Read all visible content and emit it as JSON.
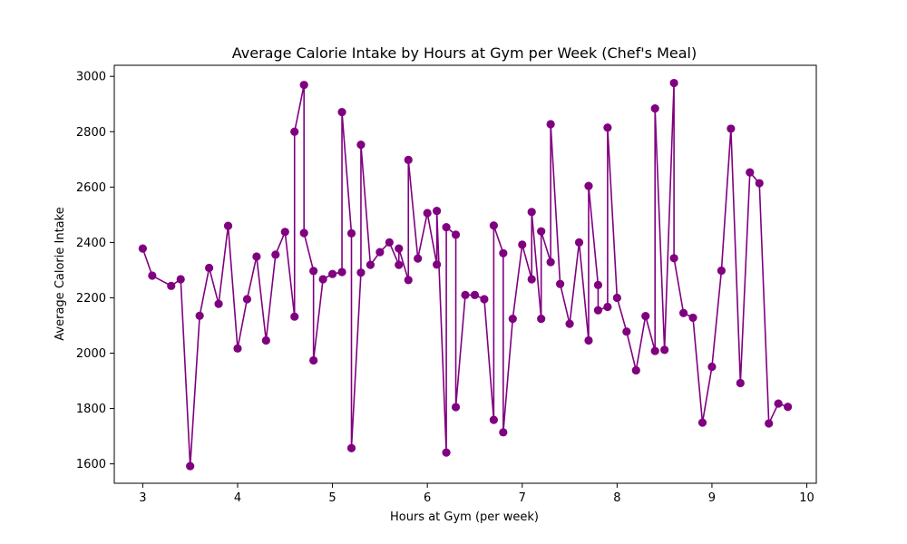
{
  "chart_data": {
    "type": "line",
    "title": "Average Calorie Intake by Hours at Gym per Week (Chef's Meal)",
    "xlabel": "Hours at Gym (per week)",
    "ylabel": "Average Calorie Intake",
    "xlim": [
      2.7,
      10.1
    ],
    "ylim": [
      1530,
      3040
    ],
    "xticks": [
      3,
      4,
      5,
      6,
      7,
      8,
      9,
      10
    ],
    "yticks": [
      1600,
      1800,
      2000,
      2200,
      2400,
      2600,
      2800,
      3000
    ],
    "grid": false,
    "color": "#800080",
    "series": [
      {
        "marker": "circle",
        "points": [
          [
            3.0,
            2378
          ],
          [
            3.1,
            2280
          ],
          [
            3.3,
            2243
          ],
          [
            3.4,
            2267
          ],
          [
            3.5,
            1592
          ],
          [
            3.6,
            2135
          ],
          [
            3.7,
            2308
          ],
          [
            3.8,
            2178
          ],
          [
            3.9,
            2460
          ],
          [
            4.0,
            2017
          ],
          [
            4.1,
            2195
          ],
          [
            4.2,
            2349
          ],
          [
            4.3,
            2046
          ],
          [
            4.4,
            2356
          ],
          [
            4.5,
            2438
          ],
          [
            4.6,
            2132
          ],
          [
            4.6,
            2800
          ],
          [
            4.7,
            2969
          ],
          [
            4.7,
            2434
          ],
          [
            4.8,
            2297
          ],
          [
            4.8,
            1974
          ],
          [
            4.9,
            2267
          ],
          [
            5.0,
            2286
          ],
          [
            5.1,
            2293
          ],
          [
            5.1,
            2871
          ],
          [
            5.2,
            2433
          ],
          [
            5.2,
            1657
          ],
          [
            5.3,
            2291
          ],
          [
            5.3,
            2753
          ],
          [
            5.4,
            2319
          ],
          [
            5.5,
            2365
          ],
          [
            5.6,
            2400
          ],
          [
            5.7,
            2319
          ],
          [
            5.7,
            2378
          ],
          [
            5.8,
            2264
          ],
          [
            5.8,
            2698
          ],
          [
            5.9,
            2342
          ],
          [
            6.0,
            2506
          ],
          [
            6.1,
            2320
          ],
          [
            6.1,
            2514
          ],
          [
            6.2,
            1641
          ],
          [
            6.2,
            2455
          ],
          [
            6.3,
            2428
          ],
          [
            6.3,
            1805
          ],
          [
            6.4,
            2210
          ],
          [
            6.5,
            2210
          ],
          [
            6.6,
            2195
          ],
          [
            6.7,
            1759
          ],
          [
            6.7,
            2461
          ],
          [
            6.8,
            2361
          ],
          [
            6.8,
            1714
          ],
          [
            6.9,
            2124
          ],
          [
            7.0,
            2392
          ],
          [
            7.1,
            2267
          ],
          [
            7.1,
            2510
          ],
          [
            7.2,
            2124
          ],
          [
            7.2,
            2440
          ],
          [
            7.3,
            2329
          ],
          [
            7.3,
            2827
          ],
          [
            7.4,
            2250
          ],
          [
            7.5,
            2106
          ],
          [
            7.6,
            2400
          ],
          [
            7.7,
            2046
          ],
          [
            7.7,
            2604
          ],
          [
            7.8,
            2246
          ],
          [
            7.8,
            2155
          ],
          [
            7.9,
            2167
          ],
          [
            7.9,
            2815
          ],
          [
            8.0,
            2200
          ],
          [
            8.1,
            2078
          ],
          [
            8.2,
            1938
          ],
          [
            8.3,
            2134
          ],
          [
            8.4,
            2008
          ],
          [
            8.4,
            2884
          ],
          [
            8.5,
            2012
          ],
          [
            8.6,
            2976
          ],
          [
            8.6,
            2343
          ],
          [
            8.7,
            2145
          ],
          [
            8.8,
            2128
          ],
          [
            8.9,
            1749
          ],
          [
            9.0,
            1951
          ],
          [
            9.1,
            2298
          ],
          [
            9.2,
            2811
          ],
          [
            9.3,
            1892
          ],
          [
            9.4,
            2653
          ],
          [
            9.5,
            2614
          ],
          [
            9.6,
            1746
          ],
          [
            9.7,
            1818
          ],
          [
            9.8,
            1806
          ]
        ]
      }
    ]
  }
}
